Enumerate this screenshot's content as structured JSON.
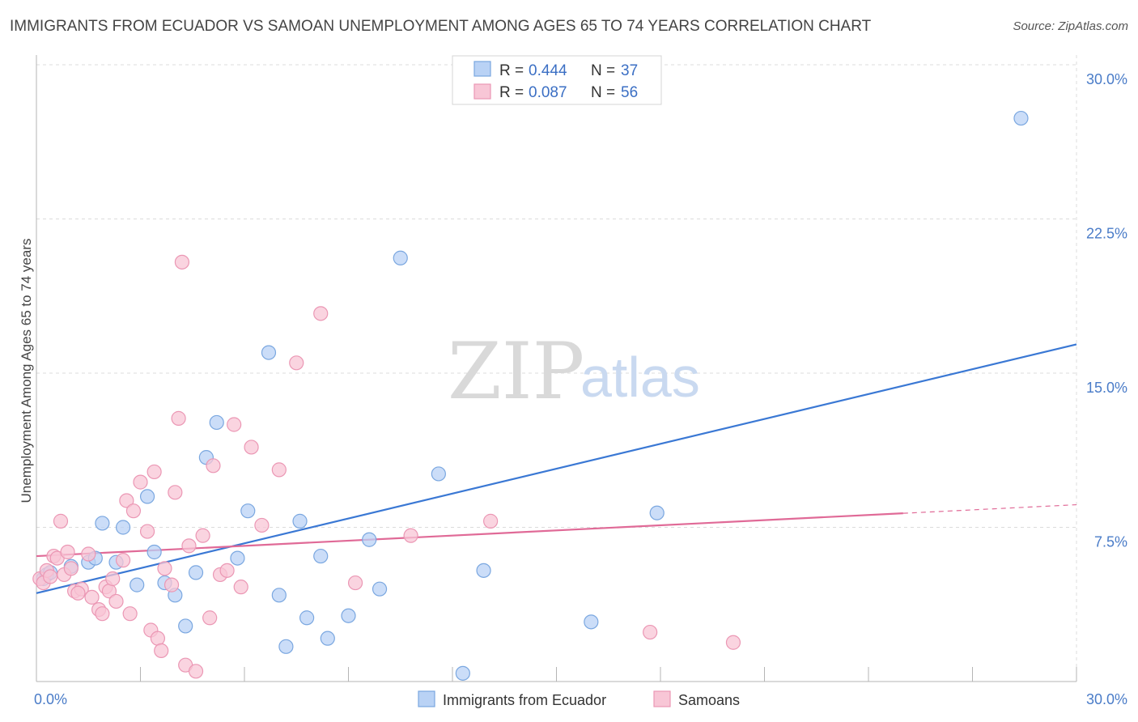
{
  "title": "IMMIGRANTS FROM ECUADOR VS SAMOAN UNEMPLOYMENT AMONG AGES 65 TO 74 YEARS CORRELATION CHART",
  "source": "Source: ZipAtlas.com",
  "watermark": {
    "zip": "ZIP",
    "atlas": "atlas"
  },
  "colors": {
    "blue_fill": "#b9d2f5",
    "blue_stroke": "#7aa7e0",
    "blue_line": "#3a78d4",
    "pink_fill": "#f8c6d6",
    "pink_stroke": "#eb97b4",
    "pink_line": "#e06a97",
    "grid": "#dcdcdc",
    "axis_text": "#4a7cc8"
  },
  "legend": {
    "rows": [
      {
        "r_label": "R =",
        "r_value": "0.444",
        "n_label": "N =",
        "n_value": "37"
      },
      {
        "r_label": "R =",
        "r_value": "0.087",
        "n_label": "N =",
        "n_value": "56"
      }
    ]
  },
  "chart_data": {
    "type": "scatter",
    "title": "IMMIGRANTS FROM ECUADOR VS SAMOAN UNEMPLOYMENT AMONG AGES 65 TO 74 YEARS CORRELATION CHART",
    "xlabel": "",
    "ylabel": "Unemployment Among Ages 65 to 74 years",
    "xlim": [
      0,
      30
    ],
    "ylim": [
      0,
      30
    ],
    "x_tick_labels": [
      "0.0%",
      "30.0%"
    ],
    "y_ticks": [
      7.5,
      15.0,
      22.5,
      30.0
    ],
    "y_tick_labels": [
      "7.5%",
      "15.0%",
      "22.5%",
      "30.0%"
    ],
    "grid": true,
    "legend_position": "top-center",
    "series": [
      {
        "name": "Immigrants from Ecuador",
        "color": "blue",
        "R": 0.444,
        "N": 37,
        "trend": {
          "x": [
            0,
            30
          ],
          "y": [
            4.3,
            16.4
          ],
          "dashed_from": null
        },
        "points": [
          [
            0.2,
            5.0
          ],
          [
            0.3,
            5.2
          ],
          [
            0.4,
            5.3
          ],
          [
            1.0,
            5.6
          ],
          [
            1.5,
            5.8
          ],
          [
            1.7,
            6.0
          ],
          [
            1.9,
            7.7
          ],
          [
            2.3,
            5.8
          ],
          [
            2.5,
            7.5
          ],
          [
            2.9,
            4.7
          ],
          [
            3.2,
            9.0
          ],
          [
            3.4,
            6.3
          ],
          [
            3.7,
            4.8
          ],
          [
            4.0,
            4.2
          ],
          [
            4.3,
            2.7
          ],
          [
            4.6,
            5.3
          ],
          [
            4.9,
            10.9
          ],
          [
            5.2,
            12.6
          ],
          [
            5.8,
            6.0
          ],
          [
            6.1,
            8.3
          ],
          [
            6.7,
            16.0
          ],
          [
            7.0,
            4.2
          ],
          [
            7.2,
            1.7
          ],
          [
            7.6,
            7.8
          ],
          [
            7.8,
            3.1
          ],
          [
            8.2,
            6.1
          ],
          [
            8.4,
            2.1
          ],
          [
            9.0,
            3.2
          ],
          [
            9.6,
            6.9
          ],
          [
            9.9,
            4.5
          ],
          [
            10.5,
            20.6
          ],
          [
            11.6,
            10.1
          ],
          [
            12.3,
            0.4
          ],
          [
            12.9,
            5.4
          ],
          [
            16.0,
            2.9
          ],
          [
            17.9,
            8.2
          ],
          [
            28.4,
            27.4
          ]
        ]
      },
      {
        "name": "Samoans",
        "color": "pink",
        "R": 0.087,
        "N": 56,
        "trend": {
          "x": [
            0,
            30
          ],
          "y": [
            6.1,
            8.6
          ],
          "dashed_from": 25.0
        },
        "points": [
          [
            0.1,
            5.0
          ],
          [
            0.2,
            4.8
          ],
          [
            0.3,
            5.4
          ],
          [
            0.5,
            6.1
          ],
          [
            0.6,
            6.0
          ],
          [
            0.7,
            7.8
          ],
          [
            0.8,
            5.2
          ],
          [
            0.9,
            6.3
          ],
          [
            1.0,
            5.5
          ],
          [
            1.1,
            4.4
          ],
          [
            1.3,
            4.5
          ],
          [
            1.5,
            6.2
          ],
          [
            1.6,
            4.1
          ],
          [
            1.8,
            3.5
          ],
          [
            1.9,
            3.3
          ],
          [
            2.0,
            4.6
          ],
          [
            2.1,
            4.4
          ],
          [
            2.2,
            5.0
          ],
          [
            2.3,
            3.9
          ],
          [
            2.5,
            5.9
          ],
          [
            2.6,
            8.8
          ],
          [
            2.7,
            3.3
          ],
          [
            2.8,
            8.3
          ],
          [
            3.0,
            9.7
          ],
          [
            3.2,
            7.3
          ],
          [
            3.3,
            2.5
          ],
          [
            3.4,
            10.2
          ],
          [
            3.5,
            2.1
          ],
          [
            3.6,
            1.5
          ],
          [
            3.7,
            5.5
          ],
          [
            3.9,
            4.7
          ],
          [
            4.0,
            9.2
          ],
          [
            4.1,
            12.8
          ],
          [
            4.2,
            20.4
          ],
          [
            4.3,
            0.8
          ],
          [
            4.4,
            6.6
          ],
          [
            4.6,
            0.5
          ],
          [
            4.8,
            7.1
          ],
          [
            5.0,
            3.1
          ],
          [
            5.1,
            10.5
          ],
          [
            5.3,
            5.2
          ],
          [
            5.5,
            5.4
          ],
          [
            5.7,
            12.5
          ],
          [
            5.9,
            4.6
          ],
          [
            6.2,
            11.4
          ],
          [
            6.5,
            7.6
          ],
          [
            7.0,
            10.3
          ],
          [
            7.5,
            15.5
          ],
          [
            8.2,
            17.9
          ],
          [
            9.2,
            4.8
          ],
          [
            10.8,
            7.1
          ],
          [
            13.1,
            7.8
          ],
          [
            17.7,
            2.4
          ],
          [
            20.1,
            1.9
          ],
          [
            0.4,
            5.1
          ],
          [
            1.2,
            4.3
          ]
        ]
      }
    ]
  },
  "bottom_legend": [
    {
      "label": "Immigrants from Ecuador",
      "color": "blue"
    },
    {
      "label": "Samoans",
      "color": "pink"
    }
  ]
}
